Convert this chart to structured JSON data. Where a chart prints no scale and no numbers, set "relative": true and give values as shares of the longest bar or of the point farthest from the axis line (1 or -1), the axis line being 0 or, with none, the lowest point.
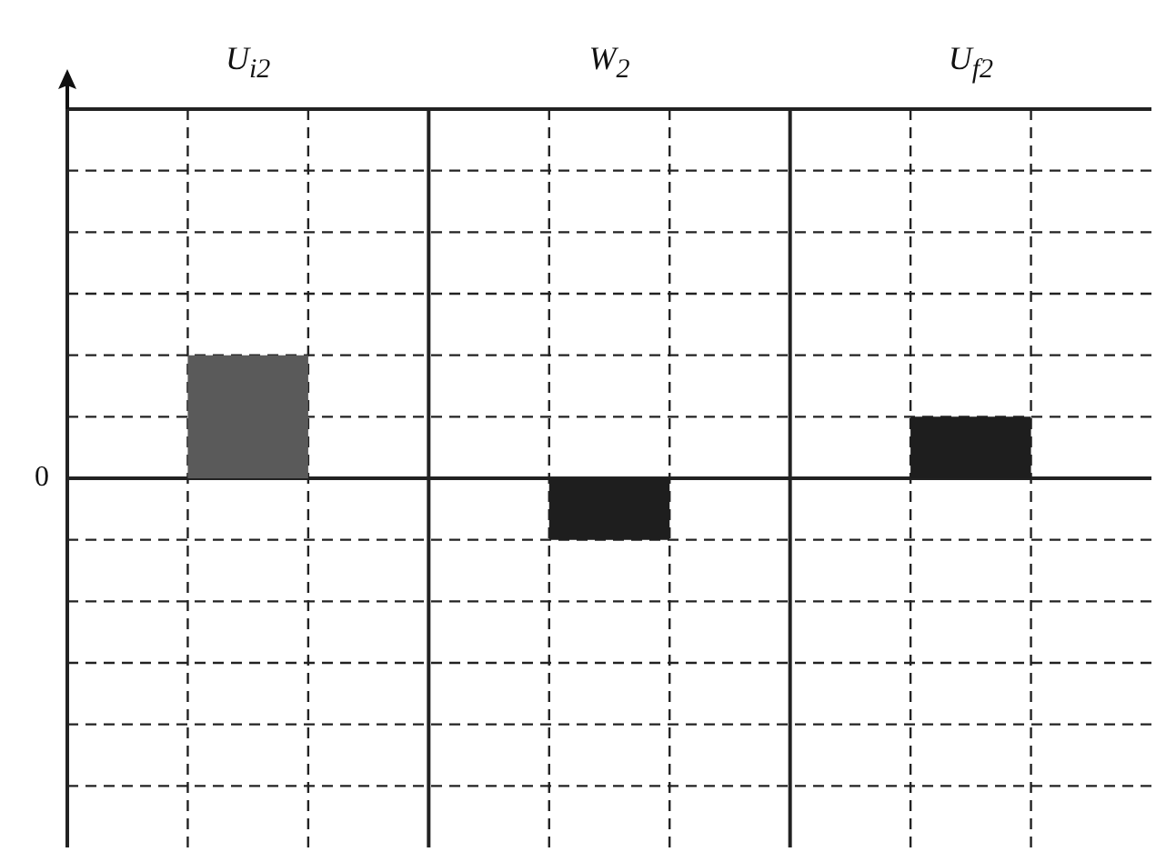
{
  "chart_data": {
    "type": "bar",
    "categories": [
      "U$_{i2}$",
      "W$_{2}$",
      "U$_{f2}$"
    ],
    "values": [
      1,
      -0.5,
      0.5
    ],
    "colors": [
      "#5a5a5a",
      "#1e1e1e",
      "#1e1e1e"
    ],
    "relative": true,
    "grid": true,
    "legend": false,
    "annotations": [
      "0"
    ]
  }
}
